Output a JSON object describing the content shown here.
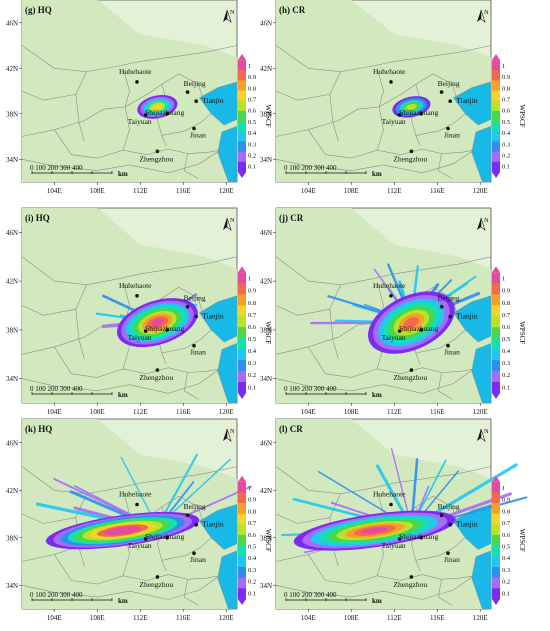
{
  "figure": {
    "panels": [
      {
        "label": "(g) HQ",
        "pattern": "g"
      },
      {
        "label": "(h) CR",
        "pattern": "h"
      },
      {
        "label": "(i) HQ",
        "pattern": "i"
      },
      {
        "label": "(j) CR",
        "pattern": "j"
      },
      {
        "label": "(k) HQ",
        "pattern": "k"
      },
      {
        "label": "(l) CR",
        "pattern": "l"
      }
    ],
    "lat_ticks": [
      "46N",
      "42N",
      "38N",
      "34N"
    ],
    "lon_ticks": [
      "104E",
      "108E",
      "112E",
      "116E",
      "120E"
    ],
    "north_label": "N",
    "scalebar_label": "0  100 200 300 400",
    "scalebar_unit": "km",
    "colorbar_ticks": [
      "1",
      "0.9",
      "0.8",
      "0.7",
      "0.6",
      "0.5",
      "0.4",
      "0.3",
      "0.2",
      "0.1"
    ],
    "colorbar_title": "WPSCF",
    "cities": [
      {
        "name": "Huhehaote"
      },
      {
        "name": "Beijing"
      },
      {
        "name": "Tianjin"
      },
      {
        "name": "Shijiazhuang"
      },
      {
        "name": "Taiyuan"
      },
      {
        "name": "Jinan"
      },
      {
        "name": "Zhengzhou"
      }
    ]
  },
  "colors": {
    "land_light": "#e3f1d6",
    "land": "#d2e9bf",
    "sea": "#18b9e6",
    "boundary": "#8c8c8c",
    "colorbar": [
      "#7b2cf0",
      "#a66cf7",
      "#2e8ff0",
      "#22c7ee",
      "#17e0b0",
      "#48d84a",
      "#b8e32a",
      "#f5d327",
      "#f6a02a",
      "#f06a4d",
      "#e54aa3"
    ]
  }
}
